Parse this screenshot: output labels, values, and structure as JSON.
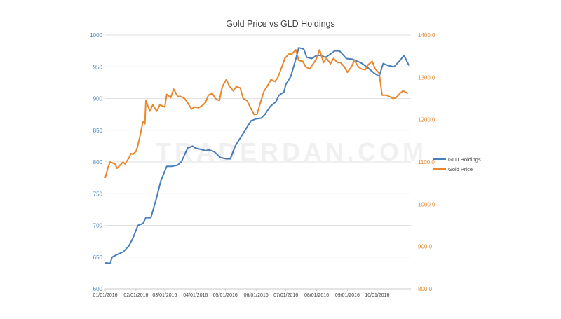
{
  "watermark": "TRADERDAN.COM",
  "chart_data": {
    "type": "line",
    "title": "Gold Price vs GLD Holdings",
    "x_tick_labels": [
      "01/01/2016",
      "02/01/2016",
      "03/01/2016",
      "04/01/2016",
      "05/01/2016",
      "06/01/2016",
      "07/01/2016",
      "08/01/2016",
      "09/01/2016",
      "10/01/2016"
    ],
    "y_left": {
      "ylim": [
        600,
        1000
      ],
      "ticks": [
        "600",
        "650",
        "700",
        "750",
        "800",
        "850",
        "900",
        "950",
        "1000"
      ],
      "color": "#4a7ebb"
    },
    "y_right": {
      "ylim": [
        800,
        1400
      ],
      "ticks": [
        "800.0",
        "900.0",
        "1000.0",
        "1100.0",
        "1200.0",
        "1300.0",
        "1400.0"
      ],
      "color": "#e8872e"
    },
    "grid": true,
    "legend_position": "right",
    "series": [
      {
        "name": "GLD Holdings",
        "axis": "left",
        "color": "#4a7ebb",
        "x": [
          "2016-01-01",
          "2016-01-06",
          "2016-01-08",
          "2016-01-13",
          "2016-01-19",
          "2016-01-25",
          "2016-01-29",
          "2016-02-03",
          "2016-02-08",
          "2016-02-11",
          "2016-02-16",
          "2016-02-22",
          "2016-02-26",
          "2016-03-03",
          "2016-03-08",
          "2016-03-14",
          "2016-03-18",
          "2016-03-24",
          "2016-03-29",
          "2016-04-01",
          "2016-04-06",
          "2016-04-11",
          "2016-04-15",
          "2016-04-20",
          "2016-04-26",
          "2016-05-02",
          "2016-05-06",
          "2016-05-11",
          "2016-05-17",
          "2016-05-23",
          "2016-05-27",
          "2016-06-01",
          "2016-06-06",
          "2016-06-10",
          "2016-06-15",
          "2016-06-21",
          "2016-06-24",
          "2016-06-29",
          "2016-07-01",
          "2016-07-06",
          "2016-07-11",
          "2016-07-14",
          "2016-07-19",
          "2016-07-22",
          "2016-07-27",
          "2016-08-01",
          "2016-08-05",
          "2016-08-10",
          "2016-08-15",
          "2016-08-19",
          "2016-08-24",
          "2016-08-31",
          "2016-09-06",
          "2016-09-12",
          "2016-09-16",
          "2016-09-22",
          "2016-09-28",
          "2016-10-03",
          "2016-10-07",
          "2016-10-12",
          "2016-10-18",
          "2016-10-24",
          "2016-10-28",
          "2016-11-02"
        ],
        "y": [
          641,
          640,
          650,
          654,
          658,
          668,
          680,
          700,
          703,
          712,
          712,
          745,
          770,
          793,
          793,
          795,
          801,
          822,
          825,
          822,
          820,
          818,
          819,
          816,
          807,
          805,
          805,
          825,
          840,
          855,
          865,
          868,
          869,
          875,
          887,
          895,
          905,
          910,
          922,
          935,
          962,
          980,
          978,
          965,
          963,
          968,
          968,
          965,
          970,
          975,
          975,
          963,
          962,
          958,
          955,
          948,
          940,
          935,
          955,
          952,
          950,
          960,
          968,
          952
        ]
      },
      {
        "name": "Gold Price",
        "axis": "right",
        "color": "#e8872e",
        "x": [
          "2016-01-01",
          "2016-01-04",
          "2016-01-06",
          "2016-01-08",
          "2016-01-11",
          "2016-01-13",
          "2016-01-15",
          "2016-01-19",
          "2016-01-21",
          "2016-01-25",
          "2016-01-27",
          "2016-01-29",
          "2016-02-01",
          "2016-02-03",
          "2016-02-05",
          "2016-02-08",
          "2016-02-10",
          "2016-02-11",
          "2016-02-15",
          "2016-02-18",
          "2016-02-22",
          "2016-02-25",
          "2016-03-01",
          "2016-03-03",
          "2016-03-07",
          "2016-03-10",
          "2016-03-14",
          "2016-03-17",
          "2016-03-21",
          "2016-03-24",
          "2016-03-28",
          "2016-03-31",
          "2016-04-04",
          "2016-04-07",
          "2016-04-11",
          "2016-04-14",
          "2016-04-18",
          "2016-04-21",
          "2016-04-25",
          "2016-04-28",
          "2016-05-02",
          "2016-05-05",
          "2016-05-09",
          "2016-05-12",
          "2016-05-16",
          "2016-05-19",
          "2016-05-23",
          "2016-05-26",
          "2016-05-30",
          "2016-06-02",
          "2016-06-06",
          "2016-06-09",
          "2016-06-13",
          "2016-06-16",
          "2016-06-20",
          "2016-06-23",
          "2016-06-27",
          "2016-06-30",
          "2016-07-04",
          "2016-07-07",
          "2016-07-11",
          "2016-07-14",
          "2016-07-18",
          "2016-07-21",
          "2016-07-25",
          "2016-07-28",
          "2016-08-01",
          "2016-08-04",
          "2016-08-08",
          "2016-08-11",
          "2016-08-15",
          "2016-08-18",
          "2016-08-22",
          "2016-08-25",
          "2016-08-29",
          "2016-09-01",
          "2016-09-05",
          "2016-09-08",
          "2016-09-12",
          "2016-09-15",
          "2016-09-19",
          "2016-09-22",
          "2016-09-26",
          "2016-09-29",
          "2016-10-03",
          "2016-10-06",
          "2016-10-10",
          "2016-10-13",
          "2016-10-17",
          "2016-10-20",
          "2016-10-24",
          "2016-10-27",
          "2016-11-01"
        ],
        "y": [
          1062,
          1088,
          1100,
          1098,
          1095,
          1085,
          1090,
          1100,
          1095,
          1110,
          1120,
          1118,
          1125,
          1140,
          1160,
          1195,
          1190,
          1245,
          1220,
          1235,
          1220,
          1235,
          1230,
          1260,
          1252,
          1272,
          1255,
          1255,
          1250,
          1240,
          1225,
          1230,
          1228,
          1232,
          1240,
          1258,
          1262,
          1250,
          1245,
          1278,
          1295,
          1280,
          1268,
          1278,
          1275,
          1250,
          1245,
          1230,
          1212,
          1213,
          1245,
          1267,
          1282,
          1295,
          1290,
          1300,
          1325,
          1345,
          1355,
          1355,
          1365,
          1340,
          1338,
          1325,
          1320,
          1330,
          1345,
          1365,
          1335,
          1345,
          1332,
          1345,
          1335,
          1335,
          1325,
          1312,
          1325,
          1340,
          1325,
          1320,
          1318,
          1330,
          1338,
          1320,
          1310,
          1258,
          1258,
          1255,
          1250,
          1252,
          1262,
          1268,
          1262
        ]
      }
    ]
  }
}
